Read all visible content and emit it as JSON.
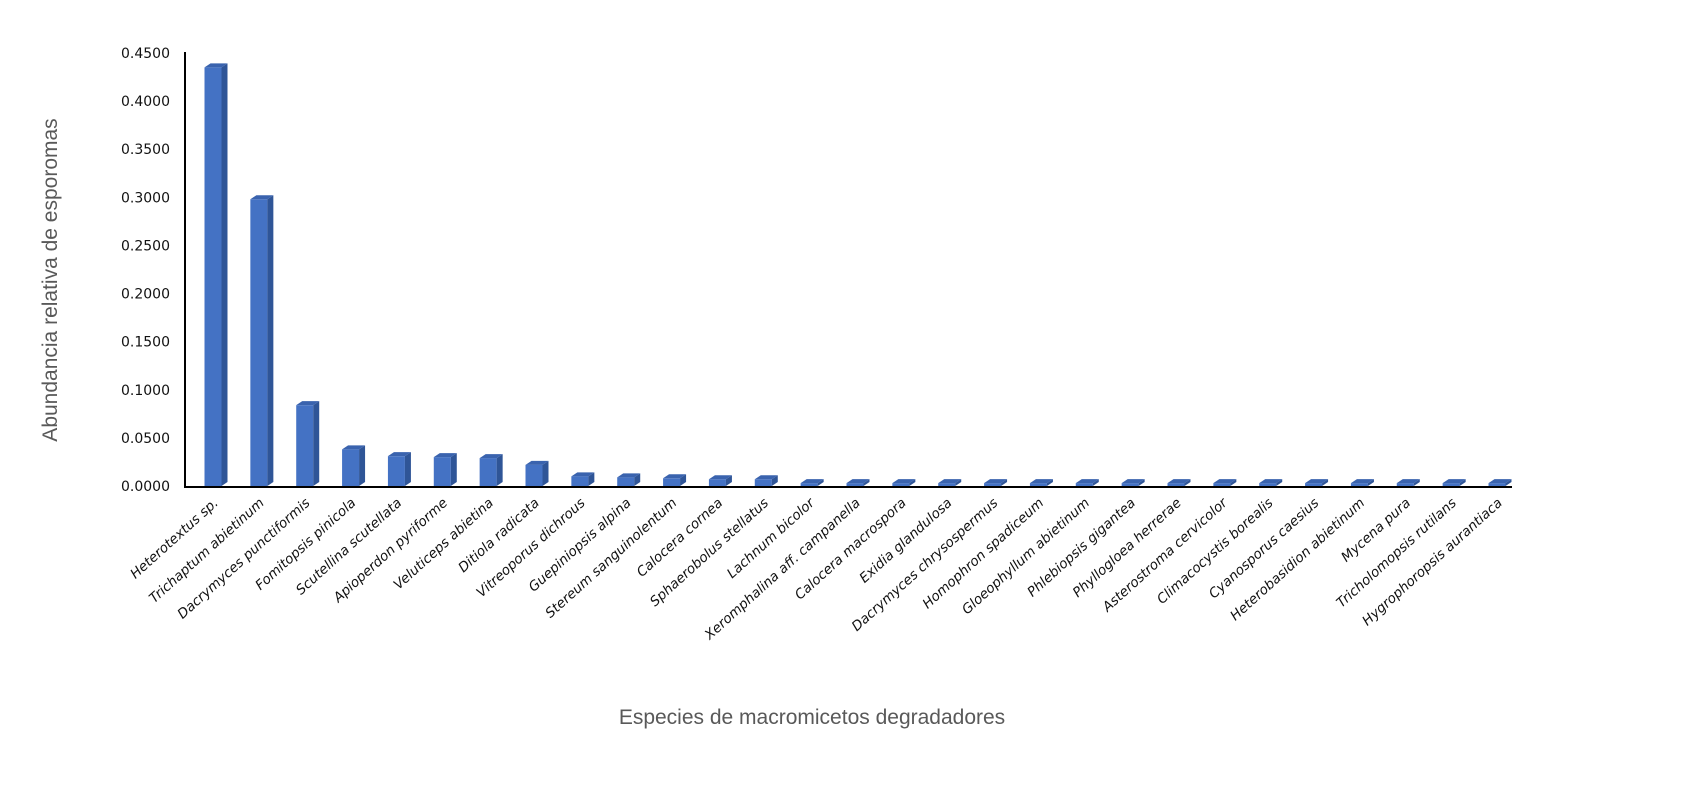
{
  "chart_data": {
    "type": "bar",
    "style": "3d-column",
    "title": "",
    "xlabel": "Especies de macromicetos degradadores",
    "ylabel": "Abundancia relativa de esporomas",
    "ylim": [
      0,
      0.45
    ],
    "yticks": [
      "0.0000",
      "0.0500",
      "0.1000",
      "0.1500",
      "0.2000",
      "0.2500",
      "0.3000",
      "0.3500",
      "0.4000",
      "0.4500"
    ],
    "grid": false,
    "legend": "none",
    "bar_color": "#4472C4",
    "categories": [
      "Heterotextus sp.",
      "Trichaptum abietinum",
      "Dacrymyces punctiformis",
      "Fomitopsis pinicola",
      "Scutellina scutellata",
      "Apioperdon pyriforme",
      "Veluticeps abietina",
      "Ditiola radicata",
      "Vitreoporus dichrous",
      "Guepiniopsis alpina",
      "Stereum sanguinolentum",
      "Calocera cornea",
      "Sphaerobolus stellatus",
      "Lachnum bicolor",
      "Xeromphalina aff. campanella",
      "Calocera macrospora",
      "Exidia glandulosa",
      "Dacrymyces chrysospermus",
      "Homophron spadiceum",
      "Gloeophyllum abietinum",
      "Phlebiopsis gigantea",
      "Phyllogloea herrerae",
      "Asterostroma cervicolor",
      "Climacocystis borealis",
      "Cyanosporus caesius",
      "Heterobasidion abietinum",
      "Mycena pura",
      "Tricholomopsis rutilans",
      "Hygrophoropsis aurantiaca"
    ],
    "values": [
      0.435,
      0.298,
      0.084,
      0.038,
      0.031,
      0.03,
      0.029,
      0.022,
      0.01,
      0.009,
      0.008,
      0.007,
      0.007,
      0.003,
      0.003,
      0.003,
      0.003,
      0.003,
      0.003,
      0.003,
      0.003,
      0.003,
      0.003,
      0.003,
      0.003,
      0.003,
      0.003,
      0.003,
      0.003
    ]
  }
}
